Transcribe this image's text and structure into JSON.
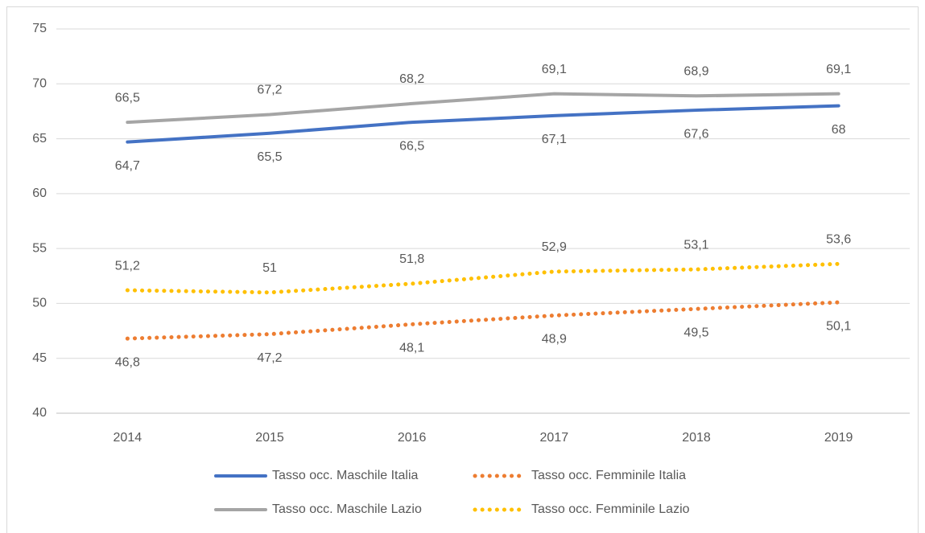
{
  "chart_data": {
    "type": "line",
    "categories": [
      "2014",
      "2015",
      "2016",
      "2017",
      "2018",
      "2019"
    ],
    "series": [
      {
        "name": "Tasso occ. Maschile Italia",
        "color": "#4472c4",
        "line_style": "solid",
        "values": [
          64.7,
          65.5,
          66.5,
          67.1,
          67.6,
          68
        ],
        "value_labels": [
          "64,7",
          "65,5",
          "66,5",
          "67,1",
          "67,6",
          "68"
        ]
      },
      {
        "name": "Tasso occ. Femminile Italia",
        "color": "#ed7d31",
        "line_style": "dotted",
        "values": [
          46.8,
          47.2,
          48.1,
          48.9,
          49.5,
          50.1
        ],
        "value_labels": [
          "46,8",
          "47,2",
          "48,1",
          "48,9",
          "49,5",
          "50,1"
        ]
      },
      {
        "name": "Tasso occ. Maschile Lazio",
        "color": "#a5a5a5",
        "line_style": "solid",
        "values": [
          66.5,
          67.2,
          68.2,
          69.1,
          68.9,
          69.1
        ],
        "value_labels": [
          "66,5",
          "67,2",
          "68,2",
          "69,1",
          "68,9",
          "69,1"
        ]
      },
      {
        "name": "Tasso occ. Femminile Lazio",
        "color": "#ffc000",
        "line_style": "dotted",
        "values": [
          51.2,
          51,
          51.8,
          52.9,
          53.1,
          53.6
        ],
        "value_labels": [
          "51,2",
          "51",
          "51,8",
          "52,9",
          "53,1",
          "53,6"
        ]
      }
    ],
    "ylim": [
      40,
      75
    ],
    "yticks": [
      40,
      45,
      50,
      55,
      60,
      65,
      70,
      75
    ],
    "grid": true,
    "legend": "bottom"
  }
}
